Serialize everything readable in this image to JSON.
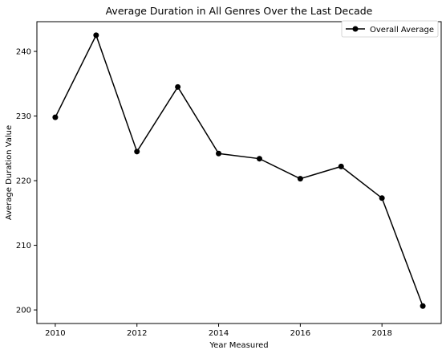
{
  "chart_data": {
    "type": "line",
    "title": "Average Duration in All Genres Over the Last Decade",
    "xlabel": "Year Measured",
    "ylabel": "Average Duration Value",
    "xlim": [
      2009.55,
      2019.45
    ],
    "ylim": [
      197.9,
      244.6
    ],
    "x_ticks": [
      2010,
      2012,
      2014,
      2016,
      2018
    ],
    "y_ticks": [
      200,
      210,
      220,
      230,
      240
    ],
    "grid": false,
    "legend_position": "top-right",
    "series": [
      {
        "name": "Overall Average",
        "color": "#000000",
        "marker": "circle",
        "x": [
          2010,
          2011,
          2012,
          2013,
          2014,
          2015,
          2016,
          2017,
          2018,
          2019
        ],
        "y": [
          229.8,
          242.5,
          224.5,
          234.5,
          224.2,
          223.4,
          220.3,
          222.2,
          217.3,
          200.6
        ]
      }
    ]
  }
}
